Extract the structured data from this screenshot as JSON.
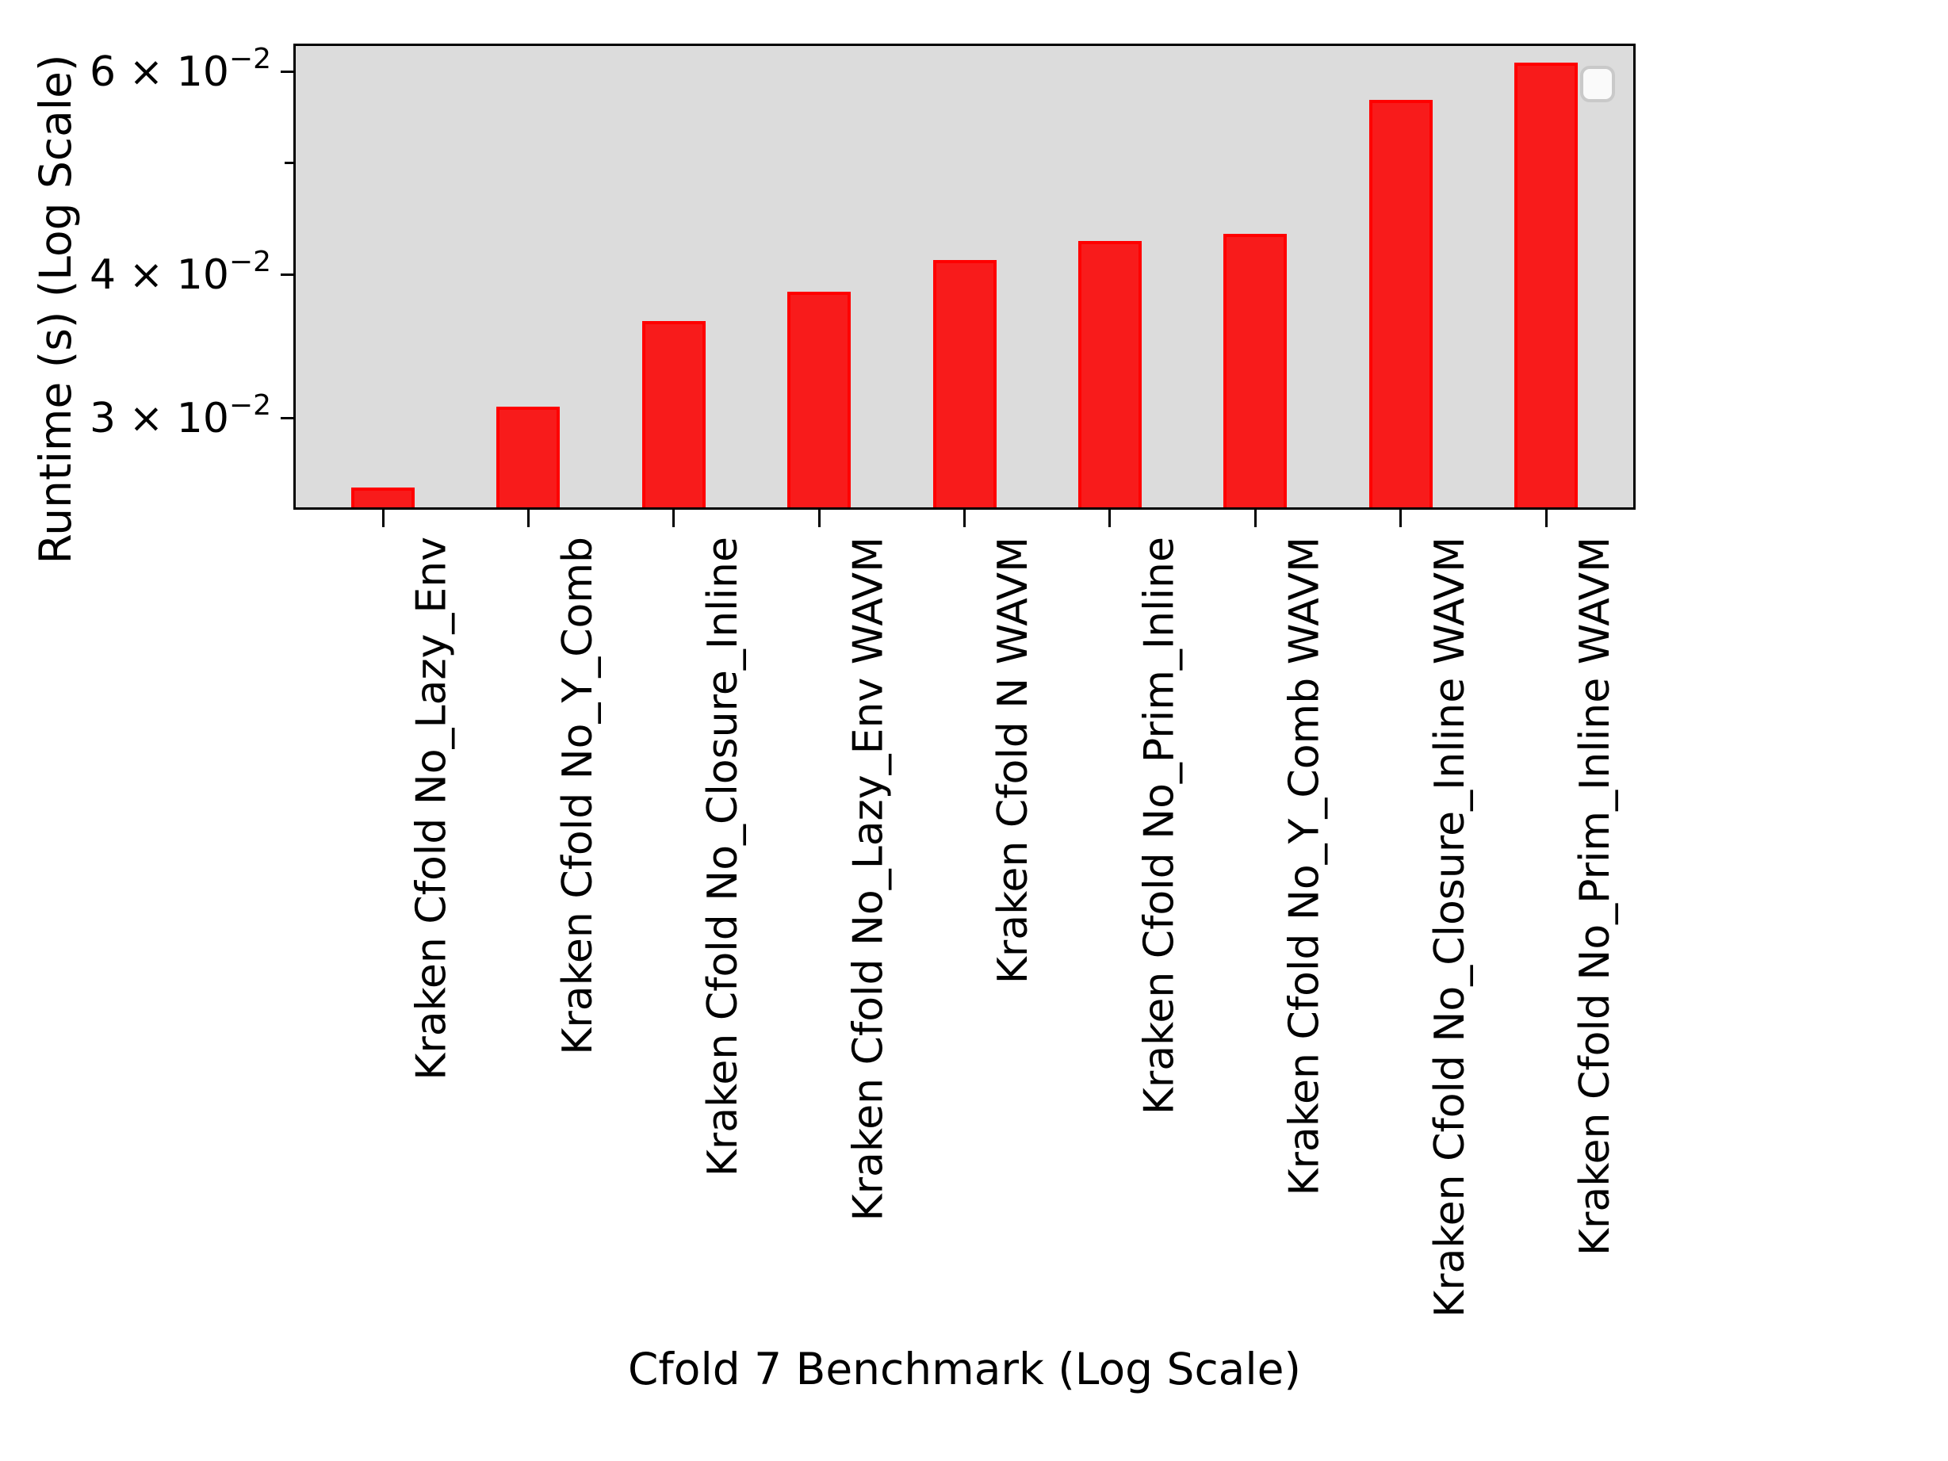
{
  "figure": {
    "background_color": "#ffffff",
    "plot_background_color": "#dcdcdc",
    "bar_fill_color": "#f81b1b",
    "bar_edge_color": "#ff0000",
    "axis_color": "#000000",
    "legend": {
      "visible": true,
      "entries": []
    }
  },
  "chart_data": {
    "type": "bar",
    "title": "",
    "xlabel": "Cfold 7 Benchmark (Log Scale)",
    "ylabel": "Runtime (s) (Log Scale)",
    "yscale": "log",
    "ylim": [
      0.025,
      0.0635
    ],
    "grid": false,
    "legend_position": "upper right",
    "categories": [
      "Kraken Cfold No_Lazy_Env",
      "Kraken Cfold No_Y_Comb",
      "Kraken Cfold No_Closure_Inline",
      "Kraken Cfold No_Lazy_Env WAVM",
      "Kraken Cfold N WAVM",
      "Kraken Cfold No_Prim_Inline",
      "Kraken Cfold No_Y_Comb WAVM",
      "Kraken Cfold No_Closure_Inline WAVM",
      "Kraken Cfold No_Prim_Inline WAVM"
    ],
    "values": [
      0.026,
      0.0306,
      0.0363,
      0.0385,
      0.041,
      0.0426,
      0.0432,
      0.0565,
      0.0608
    ],
    "yticks": [
      {
        "value": 0.03,
        "label": "3 × 10⁻²",
        "base_text": "3 × 10",
        "exponent": "−2",
        "major": true
      },
      {
        "value": 0.04,
        "label": "4 × 10⁻²",
        "base_text": "4 × 10",
        "exponent": "−2",
        "major": true
      },
      {
        "value": 0.05,
        "label": "",
        "base_text": "",
        "exponent": "",
        "major": false
      },
      {
        "value": 0.06,
        "label": "6 × 10⁻²",
        "base_text": "6 × 10",
        "exponent": "−2",
        "major": true
      }
    ]
  }
}
